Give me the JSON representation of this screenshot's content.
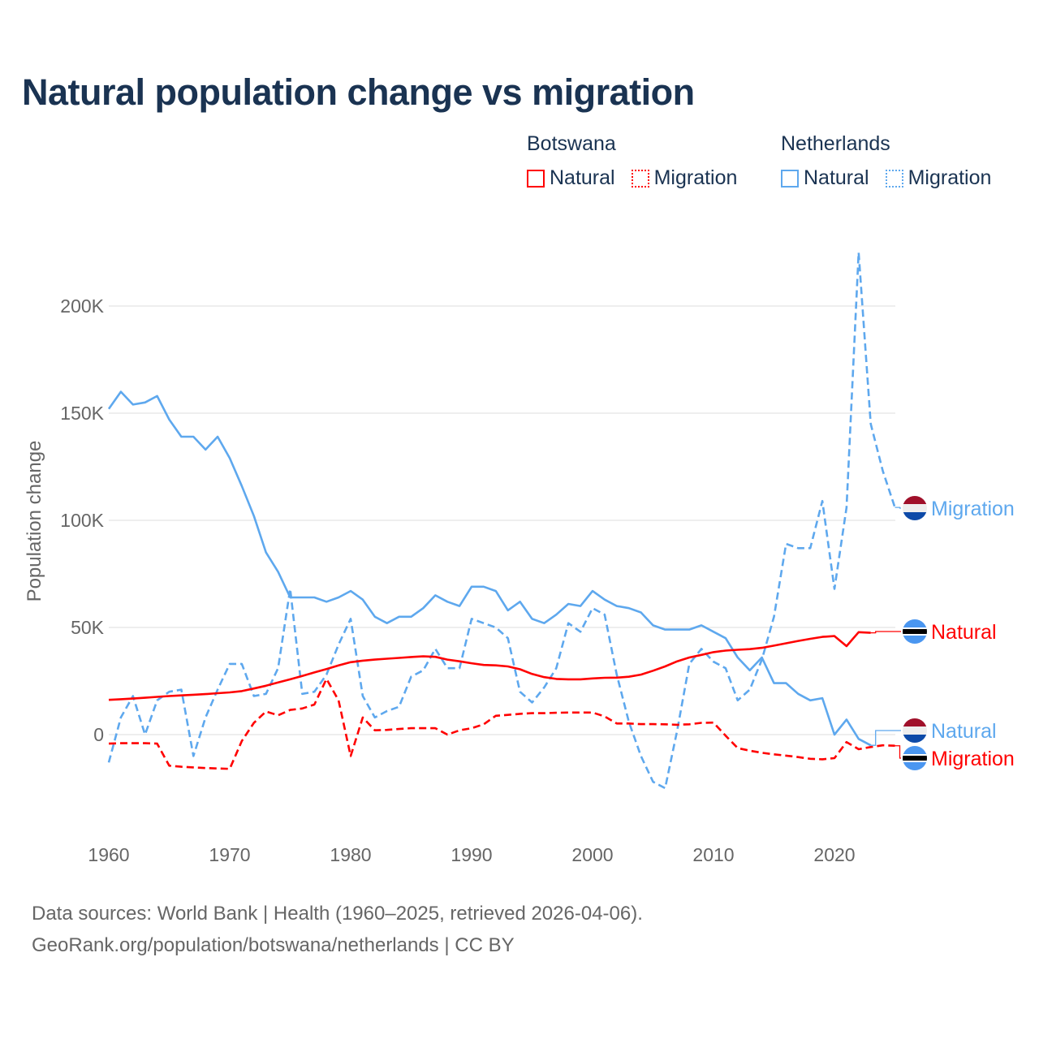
{
  "title": "Natural population change vs migration",
  "legend": {
    "groups": [
      {
        "country": "Botswana",
        "color": "#ff0000",
        "items": [
          "Natural",
          "Migration"
        ]
      },
      {
        "country": "Netherlands",
        "color": "#5ea8ee",
        "items": [
          "Natural",
          "Migration"
        ]
      }
    ]
  },
  "footer": {
    "line1": "Data sources: World Bank | Health (1960–2025, retrieved 2026-04-06).",
    "line2": "GeoRank.org/population/botswana/netherlands | CC BY"
  },
  "chart_data": {
    "type": "line",
    "title": "Natural population change vs migration",
    "xlabel": "",
    "ylabel": "Population change",
    "xlim": [
      1960,
      2025
    ],
    "ylim": [
      -40000,
      240000
    ],
    "xticks": [
      1960,
      1970,
      1980,
      1990,
      2000,
      2010,
      2020
    ],
    "xtick_labels": [
      "1960",
      "1970",
      "1980",
      "1990",
      "2000",
      "2010",
      "2020"
    ],
    "yticks": [
      0,
      50000,
      100000,
      150000,
      200000
    ],
    "ytick_labels": [
      "0",
      "50K",
      "100K",
      "150K",
      "200K"
    ],
    "grid": true,
    "legend_position": "top-right",
    "series": [
      {
        "name": "Netherlands Natural",
        "label": "Natural",
        "country": "Netherlands",
        "flag": "netherlands",
        "color": "#5ea8ee",
        "dash": false,
        "start": 1960,
        "values": [
          152,
          160,
          154,
          155,
          158,
          147,
          139,
          139,
          133,
          139,
          129,
          116,
          102,
          85,
          76,
          64,
          64,
          64,
          62,
          64,
          67,
          63,
          55,
          52,
          55,
          55,
          59,
          65,
          62,
          60,
          69,
          69,
          67,
          58,
          62,
          54,
          52,
          56,
          61,
          60,
          67,
          63,
          60,
          59,
          57,
          51,
          49,
          49,
          49,
          51,
          48,
          45,
          36,
          30,
          36,
          24,
          24,
          19,
          16,
          17,
          0,
          7,
          -2,
          -5
        ]
      },
      {
        "name": "Netherlands Migration",
        "label": "Migration",
        "country": "Netherlands",
        "flag": "netherlands",
        "color": "#5ea8ee",
        "dash": true,
        "start": 1960,
        "values": [
          -13,
          8,
          18,
          0,
          16,
          20,
          21,
          -10,
          8,
          21,
          33,
          33,
          18,
          19,
          31,
          68,
          19,
          20,
          28,
          42,
          54,
          18,
          8,
          11,
          13,
          27,
          30,
          40,
          31,
          31,
          54,
          52,
          50,
          45,
          20,
          15,
          22,
          31,
          52,
          48,
          59,
          56,
          28,
          6,
          -10,
          -22,
          -25,
          2,
          33,
          40,
          34,
          31,
          16,
          21,
          35,
          55,
          89,
          87,
          87,
          109,
          68,
          106,
          225,
          145,
          123,
          106
        ]
      },
      {
        "name": "Botswana Natural",
        "label": "Natural",
        "country": "Botswana",
        "flag": "botswana",
        "color": "#ff0000",
        "dash": false,
        "start": 1960,
        "values": [
          16.2,
          16.5,
          16.8,
          17.2,
          17.6,
          18.0,
          18.3,
          18.6,
          18.9,
          19.3,
          19.7,
          20.3,
          21.5,
          22.8,
          24.3,
          25.8,
          27.4,
          29.0,
          30.6,
          32.3,
          33.8,
          34.5,
          35.0,
          35.4,
          35.8,
          36.2,
          36.5,
          36.3,
          35.0,
          34.2,
          33.3,
          32.5,
          32.3,
          31.8,
          30.5,
          28.3,
          26.8,
          26.0,
          25.8,
          25.8,
          26.2,
          26.5,
          26.6,
          27.0,
          28.0,
          29.8,
          31.8,
          34.2,
          36.0,
          37.2,
          38.5,
          39.2,
          39.6,
          39.9,
          40.5,
          41.5,
          42.6,
          43.7,
          44.7,
          45.6,
          46.0,
          41.3,
          47.8,
          47.5
        ]
      },
      {
        "name": "Botswana Migration",
        "label": "Migration",
        "country": "Botswana",
        "flag": "botswana",
        "color": "#ff0000",
        "dash": true,
        "start": 1960,
        "values": [
          -4.2,
          -4,
          -4,
          -4,
          -4.2,
          -14.5,
          -15,
          -15.3,
          -15.6,
          -15.8,
          -16,
          -3,
          5.5,
          10.8,
          9,
          11.5,
          12.2,
          14,
          26,
          16,
          -10,
          8,
          2,
          2.2,
          2.6,
          3,
          3,
          3,
          0,
          2,
          3,
          4.8,
          8.8,
          9.2,
          9.7,
          10,
          10,
          10.2,
          10.3,
          10.3,
          10.3,
          8.5,
          5.2,
          5.2,
          4.9,
          4.9,
          4.8,
          4.6,
          4.8,
          5.5,
          5.6,
          -0.5,
          -6.3,
          -7.5,
          -8.5,
          -9.2,
          -9.8,
          -10.5,
          -11.3,
          -11.5,
          -11,
          -3.5,
          -6.8,
          -5.8,
          -5,
          -5.2
        ]
      }
    ],
    "value_unit": "thousands",
    "end_labels": [
      {
        "series": "Netherlands Migration",
        "text": "Migration"
      },
      {
        "series": "Botswana Natural",
        "text": "Natural"
      },
      {
        "series": "Netherlands Natural",
        "text": "Natural"
      },
      {
        "series": "Botswana Migration",
        "text": "Migration"
      }
    ]
  }
}
